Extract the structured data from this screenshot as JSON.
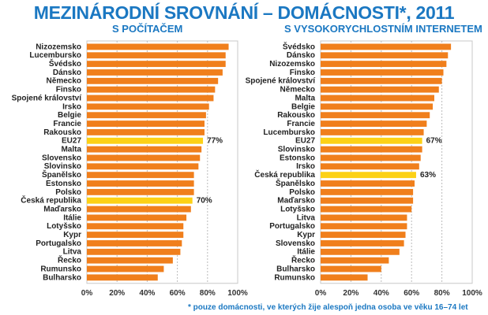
{
  "title": "MEZINÁRODNÍ SROVNÁNÍ – DOMÁCNOSTI*, 2011",
  "footnote": "*  pouze domácnosti, ve kterých žije alespoň jedna osoba ve věku 16–74 let",
  "colors": {
    "bar": "#f07f1c",
    "highlight": "#fcd116",
    "title": "#1b78c2",
    "grid": "#bbbbbb"
  },
  "chart_data": [
    {
      "type": "bar",
      "orientation": "horizontal",
      "title": "S POČÍTAČEM",
      "xlim": [
        0,
        100
      ],
      "xticks": [
        "0%",
        "20%",
        "40%",
        "60%",
        "80%",
        "100%"
      ],
      "categories": [
        "Nizozemsko",
        "Lucembursko",
        "Švédsko",
        "Dánsko",
        "Německo",
        "Finsko",
        "Spojené království",
        "Irsko",
        "Belgie",
        "Francie",
        "Rakousko",
        "EU27",
        "Malta",
        "Slovensko",
        "Slovinsko",
        "Španělsko",
        "Estonsko",
        "Polsko",
        "Česká republika",
        "Maďarsko",
        "Itálie",
        "Lotyšsko",
        "Kypr",
        "Portugalsko",
        "Litva",
        "Řecko",
        "Rumunsko",
        "Bulharsko"
      ],
      "values": [
        94,
        92,
        92,
        90,
        87,
        85,
        84,
        81,
        79,
        78,
        78,
        77,
        76,
        75,
        74,
        71,
        71,
        71,
        70,
        69,
        66,
        64,
        64,
        63,
        62,
        57,
        51,
        47
      ],
      "highlighted": [
        "EU27",
        "Česká republika"
      ],
      "data_labels": {
        "EU27": "77%",
        "Česká republika": "70%"
      }
    },
    {
      "type": "bar",
      "orientation": "horizontal",
      "title": "S VYSOKORYCHLOSTNÍM INTERNETEM",
      "xlim": [
        0,
        100
      ],
      "xticks": [
        "0%",
        "20%",
        "40%",
        "60%",
        "80%",
        "100%"
      ],
      "categories": [
        "Švédsko",
        "Dánsko",
        "Nizozemsko",
        "Finsko",
        "Spojené království",
        "Německo",
        "Malta",
        "Belgie",
        "Rakousko",
        "Francie",
        "Lucembursko",
        "EU27",
        "Slovinsko",
        "Estonsko",
        "Irsko",
        "Česká republika",
        "Španělsko",
        "Polsko",
        "Maďarsko",
        "Lotyšsko",
        "Litva",
        "Portugalsko",
        "Kypr",
        "Slovensko",
        "Itálie",
        "Řecko",
        "Bulharsko",
        "Rumunsko"
      ],
      "values": [
        86,
        84,
        83,
        81,
        80,
        78,
        75,
        74,
        72,
        70,
        68,
        67,
        67,
        66,
        65,
        63,
        62,
        61,
        61,
        60,
        57,
        57,
        56,
        55,
        52,
        45,
        40,
        31
      ],
      "highlighted": [
        "EU27",
        "Česká republika"
      ],
      "data_labels": {
        "EU27": "67%",
        "Česká republika": "63%"
      }
    }
  ]
}
